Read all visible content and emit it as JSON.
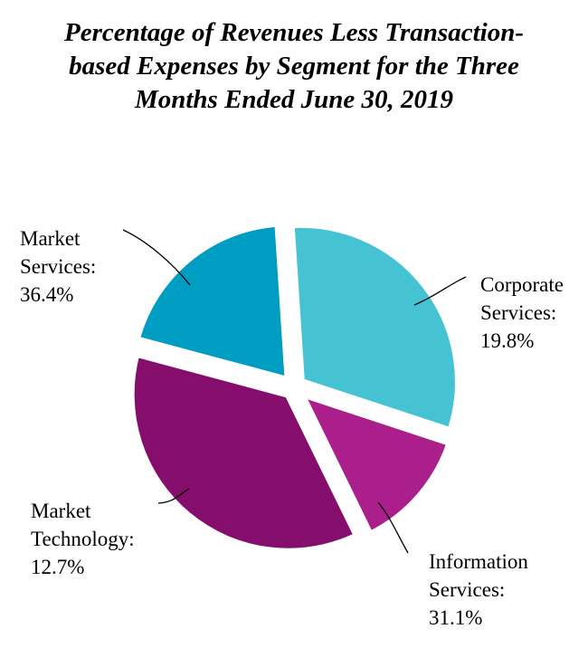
{
  "title_lines": [
    "Percentage of Revenues Less Transaction-",
    "based Expenses by Segment for the Three",
    "Months Ended June 30, 2019"
  ],
  "chart_data": {
    "type": "pie",
    "title": "Percentage of Revenues Less Transaction-based Expenses by Segment for the Three Months Ended June 30, 2019",
    "unit": "%",
    "slices": [
      {
        "label": "Corporate Services",
        "value": 19.8,
        "color": "#009dc3",
        "label_lines": [
          "Corporate",
          "Services:",
          "19.8%"
        ]
      },
      {
        "label": "Information Services",
        "value": 31.1,
        "color": "#46c3d3",
        "label_lines": [
          "Information",
          "Services:",
          "31.1%"
        ]
      },
      {
        "label": "Market Technology",
        "value": 12.7,
        "color": "#aa1f8c",
        "label_lines": [
          "Market",
          "Technology:",
          "12.7%"
        ]
      },
      {
        "label": "Market Services",
        "value": 36.4,
        "color": "#850d6b",
        "label_lines": [
          "Market",
          "Services:",
          "36.4%"
        ]
      }
    ]
  }
}
